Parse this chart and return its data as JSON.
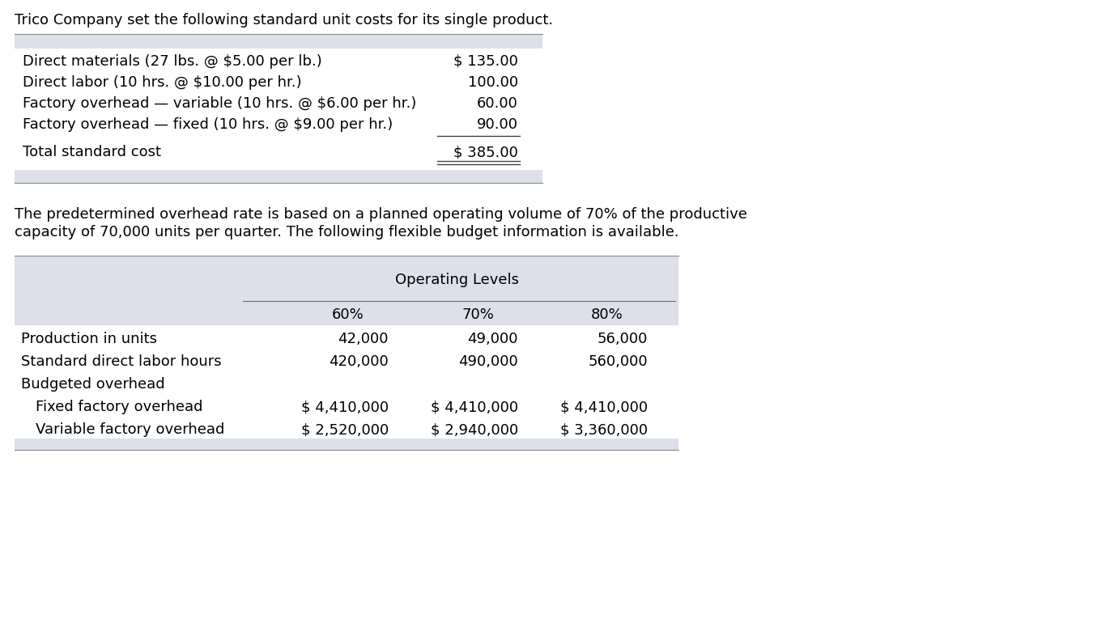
{
  "title_text": "Trico Company set the following standard unit costs for its single product.",
  "paragraph_line1": "The predetermined overhead rate is based on a planned operating volume of 70% of the productive",
  "paragraph_line2": "capacity of 70,000 units per quarter. The following flexible budget information is available.",
  "table1": {
    "rows": [
      {
        "label": "Direct materials (27 lbs. @ $5.00 per lb.)",
        "value": "$ 135.00"
      },
      {
        "label": "Direct labor (10 hrs. @ $10.00 per hr.)",
        "value": "100.00"
      },
      {
        "label": "Factory overhead — variable (10 hrs. @ $6.00 per hr.)",
        "value": "60.00"
      },
      {
        "label": "Factory overhead — fixed (10 hrs. @ $9.00 per hr.)",
        "value": "90.00"
      }
    ],
    "total_label": "Total standard cost",
    "total_value": "$ 385.00",
    "header_bg": "#dde0ea",
    "footer_bg": "#dde0ea"
  },
  "table2": {
    "header_label": "Operating Levels",
    "col_headers": [
      "60%",
      "70%",
      "80%"
    ],
    "rows": [
      {
        "label": "Production in units",
        "indent": false,
        "values": [
          "42,000",
          "49,000",
          "56,000"
        ]
      },
      {
        "label": "Standard direct labor hours",
        "indent": false,
        "values": [
          "420,000",
          "490,000",
          "560,000"
        ]
      },
      {
        "label": "Budgeted overhead",
        "indent": false,
        "values": [
          "",
          "",
          ""
        ]
      },
      {
        "label": "Fixed factory overhead",
        "indent": true,
        "values": [
          "$ 4,410,000",
          "$ 4,410,000",
          "$ 4,410,000"
        ]
      },
      {
        "label": "Variable factory overhead",
        "indent": true,
        "values": [
          "$ 2,520,000",
          "$ 2,940,000",
          "$ 3,360,000"
        ]
      }
    ],
    "header_bg": "#dde0ea",
    "footer_bg": "#dde0ea"
  },
  "bg_color": "#ffffff",
  "text_color": "#000000",
  "font_size": 13.0,
  "font_family": "DejaVu Sans"
}
